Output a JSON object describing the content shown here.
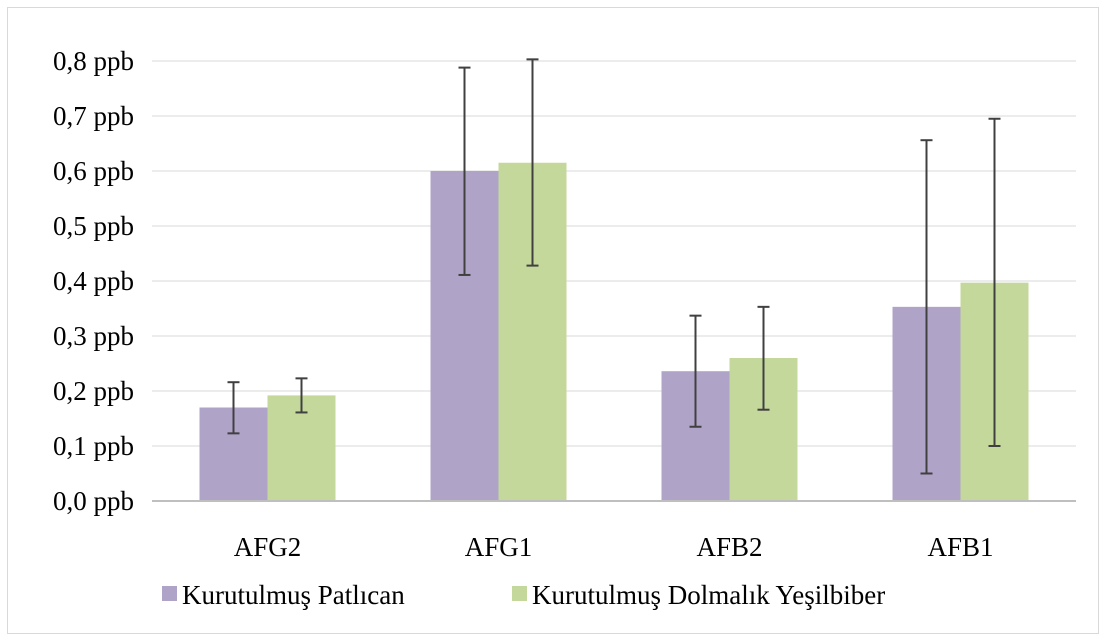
{
  "chart_data": {
    "type": "bar",
    "categories": [
      "AFG2",
      "AFG1",
      "AFB2",
      "AFB1"
    ],
    "series": [
      {
        "name": "Kurutulmuş Patlıcan",
        "color": "#b0a3c8",
        "values": [
          0.17,
          0.6,
          0.236,
          0.353
        ],
        "error_low": [
          0.123,
          0.411,
          0.135,
          0.05
        ],
        "error_high": [
          0.216,
          0.788,
          0.337,
          0.656
        ]
      },
      {
        "name": "Kurutulmuş Dolmalık Yeşilbiber",
        "color": "#c5d89b",
        "values": [
          0.192,
          0.615,
          0.26,
          0.397
        ],
        "error_low": [
          0.161,
          0.428,
          0.166,
          0.1
        ],
        "error_high": [
          0.223,
          0.803,
          0.353,
          0.695
        ]
      }
    ],
    "y_ticks": [
      "0,0 ppb",
      "0,1 ppb",
      "0,2 ppb",
      "0,3 ppb",
      "0,4 ppb",
      "0,5 ppb",
      "0,6 ppb",
      "0,7 ppb",
      "0,8 ppb"
    ],
    "ylim": [
      0,
      0.8
    ],
    "grid": true,
    "legend_position": "bottom",
    "error_bar_color": "#404040",
    "gridline_color": "#d9d9d9",
    "axis_color": "#bfbfbf"
  }
}
